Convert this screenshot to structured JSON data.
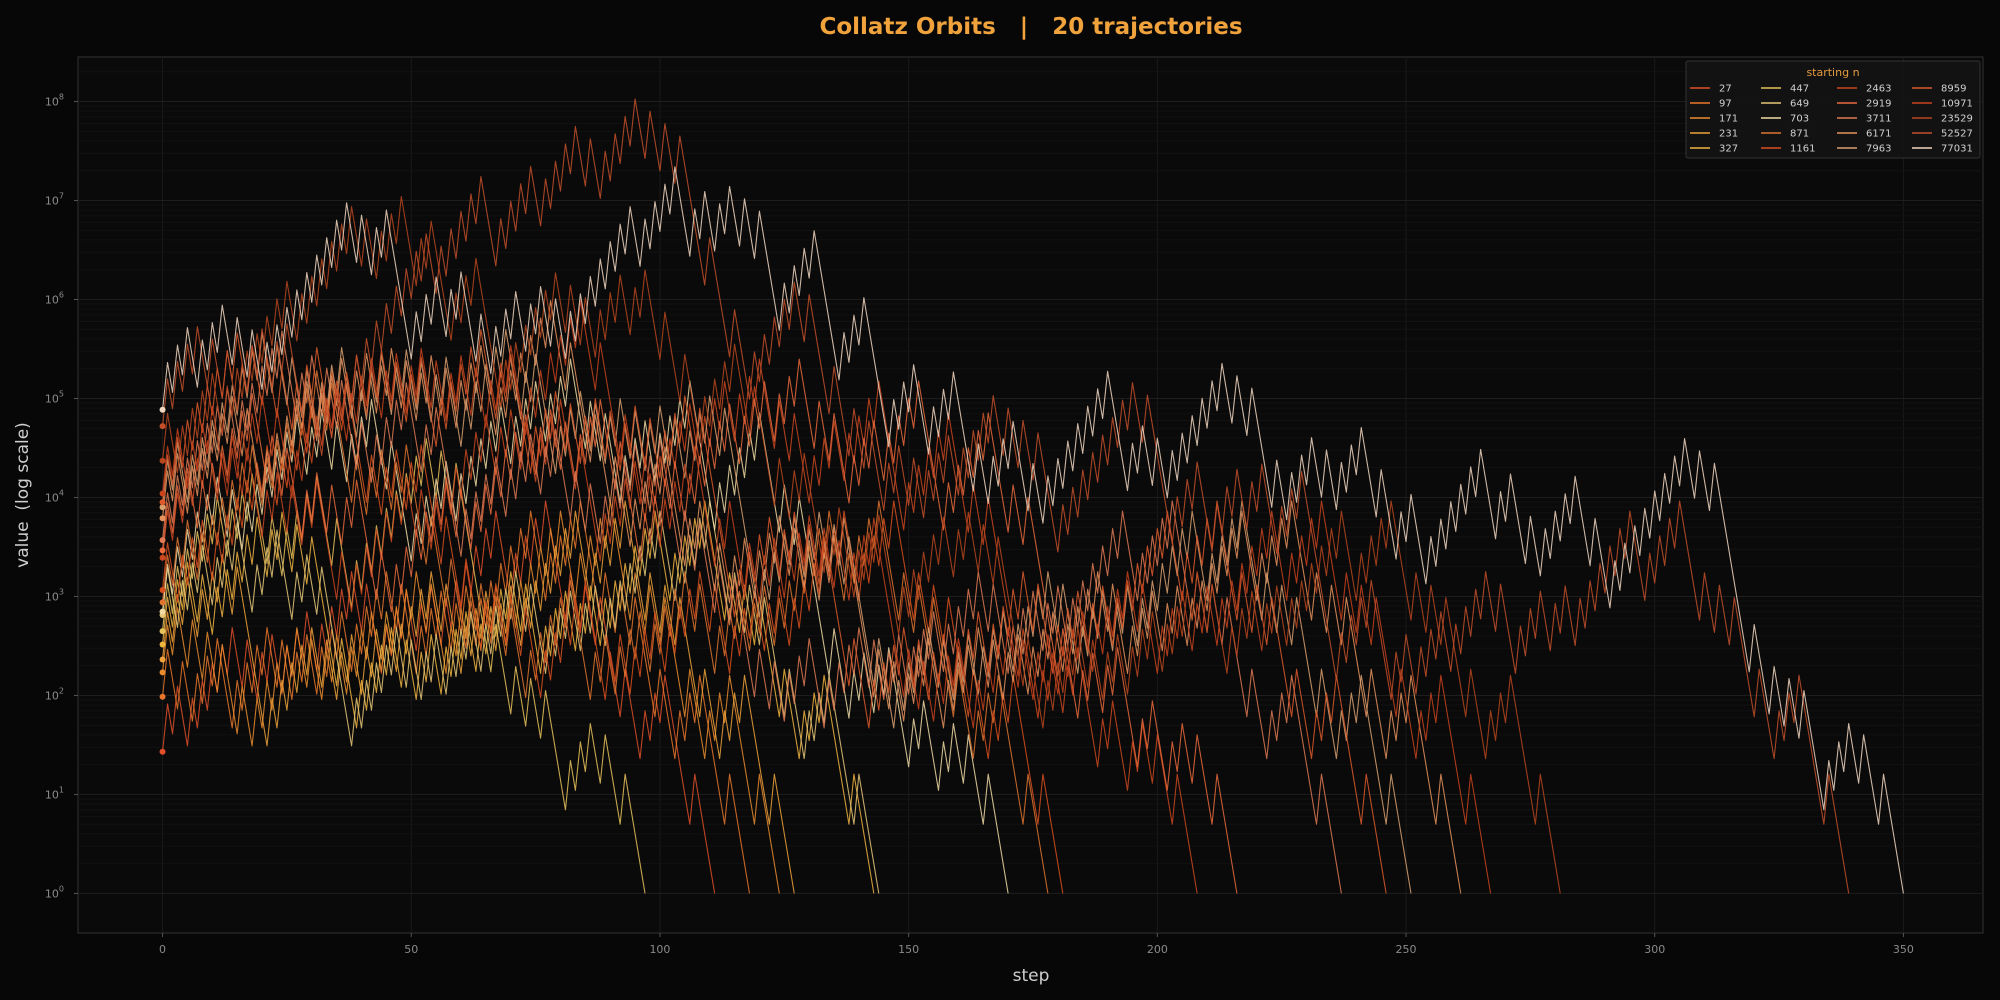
{
  "chart_data": {
    "type": "line",
    "title": "Collatz Orbits   |   20 trajectories",
    "xlabel": "step",
    "ylabel": "value  (log scale)",
    "xlim": [
      -17,
      366
    ],
    "ylim_log10": [
      -0.4,
      8.45
    ],
    "yscale": "log",
    "grid": true,
    "x_ticks": [
      0,
      50,
      100,
      150,
      200,
      250,
      300,
      350
    ],
    "x_tick_labels": [
      "0",
      "50",
      "100",
      "150",
      "200",
      "250",
      "300",
      "350"
    ],
    "y_ticks": [
      1,
      10,
      100,
      1000,
      10000,
      100000,
      1000000,
      10000000,
      100000000
    ],
    "y_tick_labels": [
      {
        "base": "10",
        "exp": "0"
      },
      {
        "base": "10",
        "exp": "1"
      },
      {
        "base": "10",
        "exp": "2"
      },
      {
        "base": "10",
        "exp": "3"
      },
      {
        "base": "10",
        "exp": "4"
      },
      {
        "base": "10",
        "exp": "5"
      },
      {
        "base": "10",
        "exp": "6"
      },
      {
        "base": "10",
        "exp": "7"
      },
      {
        "base": "10",
        "exp": "8"
      }
    ],
    "legend": {
      "title": "starting n",
      "placement": "top-right",
      "columns": 4
    },
    "series_rule": "Each series is the Collatz orbit of its starting value: n -> n/2 if n is even, 3n+1 if odd, until reaching 1; x = step index, y = value.",
    "series": [
      {
        "name": "27",
        "start": 27,
        "color": "#e1502a"
      },
      {
        "name": "97",
        "start": 97,
        "color": "#e9772b"
      },
      {
        "name": "171",
        "start": 171,
        "color": "#eb8c2e"
      },
      {
        "name": "231",
        "start": 231,
        "color": "#efa23a"
      },
      {
        "name": "327",
        "start": 327,
        "color": "#f0b440"
      },
      {
        "name": "447",
        "start": 447,
        "color": "#e8c25a"
      },
      {
        "name": "649",
        "start": 649,
        "color": "#e6c878"
      },
      {
        "name": "703",
        "start": 703,
        "color": "#f0dba5"
      },
      {
        "name": "871",
        "start": 871,
        "color": "#e0742f"
      },
      {
        "name": "1161",
        "start": 1161,
        "color": "#d9501f"
      },
      {
        "name": "2463",
        "start": 2463,
        "color": "#cc4820"
      },
      {
        "name": "2919",
        "start": 2919,
        "color": "#ea6a3c"
      },
      {
        "name": "3711",
        "start": 3711,
        "color": "#e07a55"
      },
      {
        "name": "6171",
        "start": 6171,
        "color": "#e8935e"
      },
      {
        "name": "7963",
        "start": 7963,
        "color": "#d9a070"
      },
      {
        "name": "8959",
        "start": 8959,
        "color": "#dd5a2c"
      },
      {
        "name": "10971",
        "start": 10971,
        "color": "#c9431d"
      },
      {
        "name": "23529",
        "start": 23529,
        "color": "#b8461f"
      },
      {
        "name": "52527",
        "start": 52527,
        "color": "#c4502a"
      },
      {
        "name": "77031",
        "start": 77031,
        "color": "#f1d6c0"
      }
    ]
  },
  "colors": {
    "background": "#070707",
    "plot_background": "#0a0a0a",
    "grid": "#1a1a1a",
    "spine": "#333333",
    "title": "#f0a23c"
  }
}
